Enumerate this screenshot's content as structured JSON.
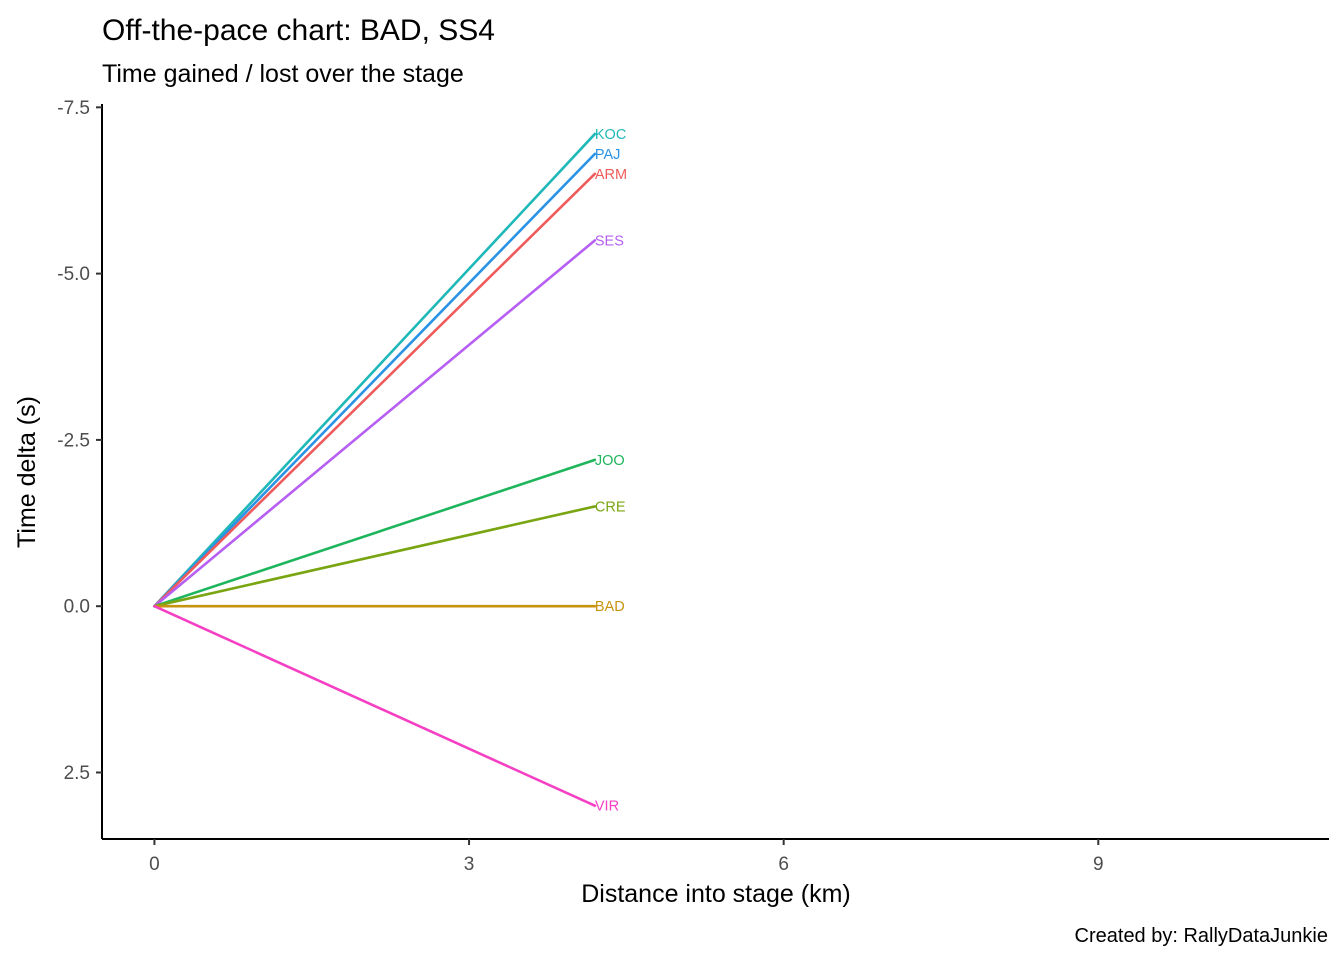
{
  "chart_data": {
    "type": "line",
    "title": "Off-the-pace chart: BAD, SS4",
    "subtitle": "Time gained / lost over the stage",
    "xlabel": "Distance into stage (km)",
    "ylabel": "Time delta (s)",
    "caption": "Created by: RallyDataJunkie",
    "xlim": [
      -0.5,
      11.2
    ],
    "ylim": [
      -7.55,
      3.5
    ],
    "y_reversed": true,
    "x_ticks": [
      {
        "value": 0,
        "label": "0"
      },
      {
        "value": 3,
        "label": "3"
      },
      {
        "value": 6,
        "label": "6"
      },
      {
        "value": 9,
        "label": "9"
      }
    ],
    "y_ticks": [
      {
        "value": -7.5,
        "label": "-7.5"
      },
      {
        "value": -5.0,
        "label": "-5.0"
      },
      {
        "value": -2.5,
        "label": "-2.5"
      },
      {
        "value": 0.0,
        "label": "0.0"
      },
      {
        "value": 2.5,
        "label": "2.5"
      }
    ],
    "grid": false,
    "legend": "none",
    "series": [
      {
        "name": "KOC",
        "color": "#1fb8b8",
        "x": [
          0,
          4.2
        ],
        "y": [
          0,
          -7.1
        ]
      },
      {
        "name": "PAJ",
        "color": "#2a93e6",
        "x": [
          0,
          4.2
        ],
        "y": [
          0,
          -6.8
        ]
      },
      {
        "name": "ARM",
        "color": "#ef5b5b",
        "x": [
          0,
          4.2
        ],
        "y": [
          0,
          -6.5
        ]
      },
      {
        "name": "SES",
        "color": "#b65ff2",
        "x": [
          0,
          4.2
        ],
        "y": [
          0,
          -5.5
        ]
      },
      {
        "name": "JOO",
        "color": "#1fb55c",
        "x": [
          0,
          4.2
        ],
        "y": [
          0,
          -2.2
        ]
      },
      {
        "name": "CRE",
        "color": "#7aa512",
        "x": [
          0,
          4.2
        ],
        "y": [
          0,
          -1.5
        ]
      },
      {
        "name": "BAD",
        "color": "#c7930f",
        "x": [
          0,
          4.2
        ],
        "y": [
          0,
          0.0
        ]
      },
      {
        "name": "VIR",
        "color": "#f540c4",
        "x": [
          0,
          4.2
        ],
        "y": [
          0,
          3.0
        ]
      }
    ]
  }
}
